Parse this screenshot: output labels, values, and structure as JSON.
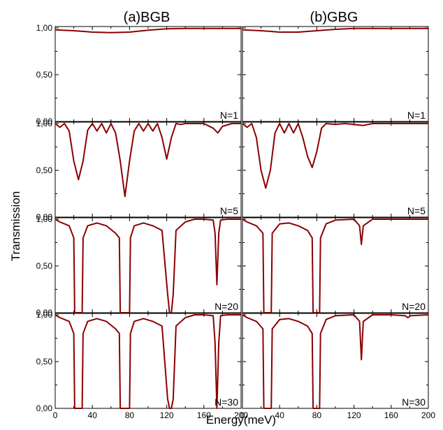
{
  "figure": {
    "columns": [
      {
        "id": "bgb",
        "title": "(a)BGB"
      },
      {
        "id": "gbg",
        "title": "(b)GBG"
      }
    ],
    "rows": [
      {
        "n_label": "N=1"
      },
      {
        "n_label": "N=5"
      },
      {
        "n_label": "N=20"
      },
      {
        "n_label": "N=30"
      }
    ],
    "xlabel": "Energy(meV)",
    "ylabel": "Transmission",
    "x_ticks": [
      "0",
      "40",
      "80",
      "120",
      "160",
      "200"
    ],
    "x_tick_values": [
      0,
      40,
      80,
      120,
      160,
      200
    ],
    "y_ticks": [
      "0,00",
      "0,50",
      "1,00"
    ],
    "y_tick_values": [
      0,
      0.5,
      1
    ],
    "line_color": "#8b0000"
  },
  "chart_data": [
    {
      "type": "line",
      "panel": "BGB N=1",
      "xlim": [
        0,
        200
      ],
      "ylim": [
        0,
        1
      ],
      "series": [
        {
          "x": [
            0,
            20,
            40,
            60,
            80,
            100,
            120,
            140,
            160,
            180,
            200
          ],
          "values": [
            0.98,
            0.97,
            0.955,
            0.95,
            0.955,
            0.975,
            0.99,
            0.995,
            0.995,
            0.995,
            0.995
          ]
        }
      ]
    },
    {
      "type": "line",
      "panel": "GBG N=1",
      "xlim": [
        0,
        200
      ],
      "ylim": [
        0,
        1
      ],
      "series": [
        {
          "x": [
            0,
            20,
            40,
            60,
            80,
            100,
            120,
            140,
            160,
            180,
            200
          ],
          "values": [
            0.98,
            0.97,
            0.955,
            0.955,
            0.97,
            0.985,
            0.995,
            0.995,
            0.995,
            0.995,
            0.995
          ]
        }
      ]
    },
    {
      "type": "line",
      "panel": "BGB N=5",
      "xlim": [
        0,
        200
      ],
      "ylim": [
        0,
        1
      ],
      "series": [
        {
          "x": [
            0,
            5,
            10,
            15,
            20,
            25,
            30,
            35,
            40,
            45,
            50,
            55,
            60,
            65,
            70,
            75,
            80,
            85,
            90,
            95,
            100,
            105,
            110,
            115,
            120,
            125,
            130,
            135,
            140,
            150,
            160,
            170,
            175,
            180,
            190,
            200
          ],
          "values": [
            1.0,
            0.96,
            1.0,
            0.92,
            0.6,
            0.4,
            0.6,
            0.93,
            1.0,
            0.92,
            1.0,
            0.9,
            1.0,
            0.9,
            0.6,
            0.22,
            0.6,
            0.92,
            1.0,
            0.92,
            1.0,
            0.92,
            1.0,
            0.85,
            0.62,
            0.85,
            1.0,
            0.99,
            1.0,
            1.0,
            1.0,
            0.95,
            0.9,
            0.97,
            1.0,
            1.0
          ]
        }
      ]
    },
    {
      "type": "line",
      "panel": "GBG N=5",
      "xlim": [
        0,
        200
      ],
      "ylim": [
        0,
        1
      ],
      "series": [
        {
          "x": [
            0,
            5,
            10,
            15,
            20,
            25,
            30,
            35,
            40,
            45,
            50,
            55,
            60,
            65,
            70,
            75,
            80,
            85,
            90,
            100,
            110,
            120,
            130,
            140,
            160,
            180,
            200
          ],
          "values": [
            1.0,
            0.96,
            1.0,
            0.85,
            0.5,
            0.31,
            0.5,
            0.9,
            1.0,
            0.9,
            1.0,
            0.9,
            1.0,
            0.85,
            0.65,
            0.53,
            0.7,
            0.95,
            1.0,
            0.99,
            1.0,
            0.99,
            0.98,
            1.0,
            1.0,
            1.0,
            1.0
          ]
        }
      ]
    },
    {
      "type": "line",
      "panel": "BGB N=20",
      "xlim": [
        0,
        200
      ],
      "ylim": [
        0,
        1
      ],
      "series": [
        {
          "x": [
            0,
            5,
            15,
            20,
            21,
            25,
            29,
            30,
            35,
            45,
            55,
            65,
            69,
            70,
            75,
            80,
            81,
            85,
            95,
            105,
            115,
            121,
            123,
            125,
            127,
            130,
            140,
            150,
            160,
            170,
            172,
            174,
            176,
            178,
            185,
            200
          ],
          "values": [
            1.0,
            0.97,
            0.93,
            0.8,
            0.0,
            0.0,
            0.0,
            0.8,
            0.93,
            0.96,
            0.93,
            0.85,
            0.8,
            0.0,
            0.0,
            0.0,
            0.8,
            0.93,
            0.96,
            0.93,
            0.88,
            0.2,
            0.0,
            0.0,
            0.2,
            0.88,
            0.97,
            1.0,
            1.0,
            0.99,
            0.85,
            0.3,
            0.85,
            0.99,
            1.0,
            1.0
          ]
        }
      ]
    },
    {
      "type": "line",
      "panel": "GBG N=20",
      "xlim": [
        0,
        200
      ],
      "ylim": [
        0,
        1
      ],
      "series": [
        {
          "x": [
            0,
            5,
            15,
            22,
            23,
            27,
            31,
            32,
            40,
            50,
            60,
            70,
            75,
            76,
            80,
            83,
            84,
            90,
            100,
            120,
            126,
            128,
            130,
            140,
            160,
            180,
            200
          ],
          "values": [
            1.0,
            0.97,
            0.93,
            0.85,
            0.0,
            0.0,
            0.0,
            0.85,
            0.95,
            0.96,
            0.93,
            0.88,
            0.8,
            0.0,
            0.0,
            0.0,
            0.8,
            0.95,
            0.99,
            1.0,
            0.93,
            0.73,
            0.93,
            1.0,
            1.0,
            1.0,
            1.0
          ]
        }
      ]
    },
    {
      "type": "line",
      "panel": "BGB N=30",
      "xlim": [
        0,
        200
      ],
      "ylim": [
        0,
        1
      ],
      "series": [
        {
          "x": [
            0,
            5,
            15,
            20,
            21,
            25,
            29,
            30,
            35,
            45,
            55,
            65,
            69,
            70,
            75,
            80,
            81,
            85,
            95,
            105,
            115,
            121,
            123,
            125,
            127,
            130,
            140,
            150,
            160,
            170,
            172,
            174,
            176,
            178,
            185,
            200
          ],
          "values": [
            1.0,
            0.97,
            0.93,
            0.8,
            0.0,
            0.0,
            0.0,
            0.8,
            0.93,
            0.96,
            0.93,
            0.85,
            0.8,
            0.0,
            0.0,
            0.0,
            0.8,
            0.93,
            0.96,
            0.93,
            0.88,
            0.1,
            0.0,
            0.0,
            0.1,
            0.88,
            0.97,
            1.0,
            1.0,
            0.99,
            0.7,
            0.0,
            0.7,
            0.99,
            1.0,
            1.0
          ]
        }
      ]
    },
    {
      "type": "line",
      "panel": "GBG N=30",
      "xlim": [
        0,
        200
      ],
      "ylim": [
        0,
        1
      ],
      "series": [
        {
          "x": [
            0,
            5,
            15,
            22,
            23,
            27,
            31,
            32,
            40,
            50,
            60,
            70,
            75,
            76,
            80,
            83,
            84,
            90,
            100,
            120,
            126,
            128,
            130,
            140,
            160,
            175,
            178,
            181,
            200
          ],
          "values": [
            1.0,
            0.97,
            0.93,
            0.85,
            0.0,
            0.0,
            0.0,
            0.85,
            0.95,
            0.96,
            0.93,
            0.88,
            0.8,
            0.0,
            0.0,
            0.0,
            0.8,
            0.95,
            0.99,
            1.0,
            0.93,
            0.52,
            0.93,
            1.0,
            1.0,
            0.99,
            0.97,
            0.99,
            1.0
          ]
        }
      ]
    }
  ]
}
